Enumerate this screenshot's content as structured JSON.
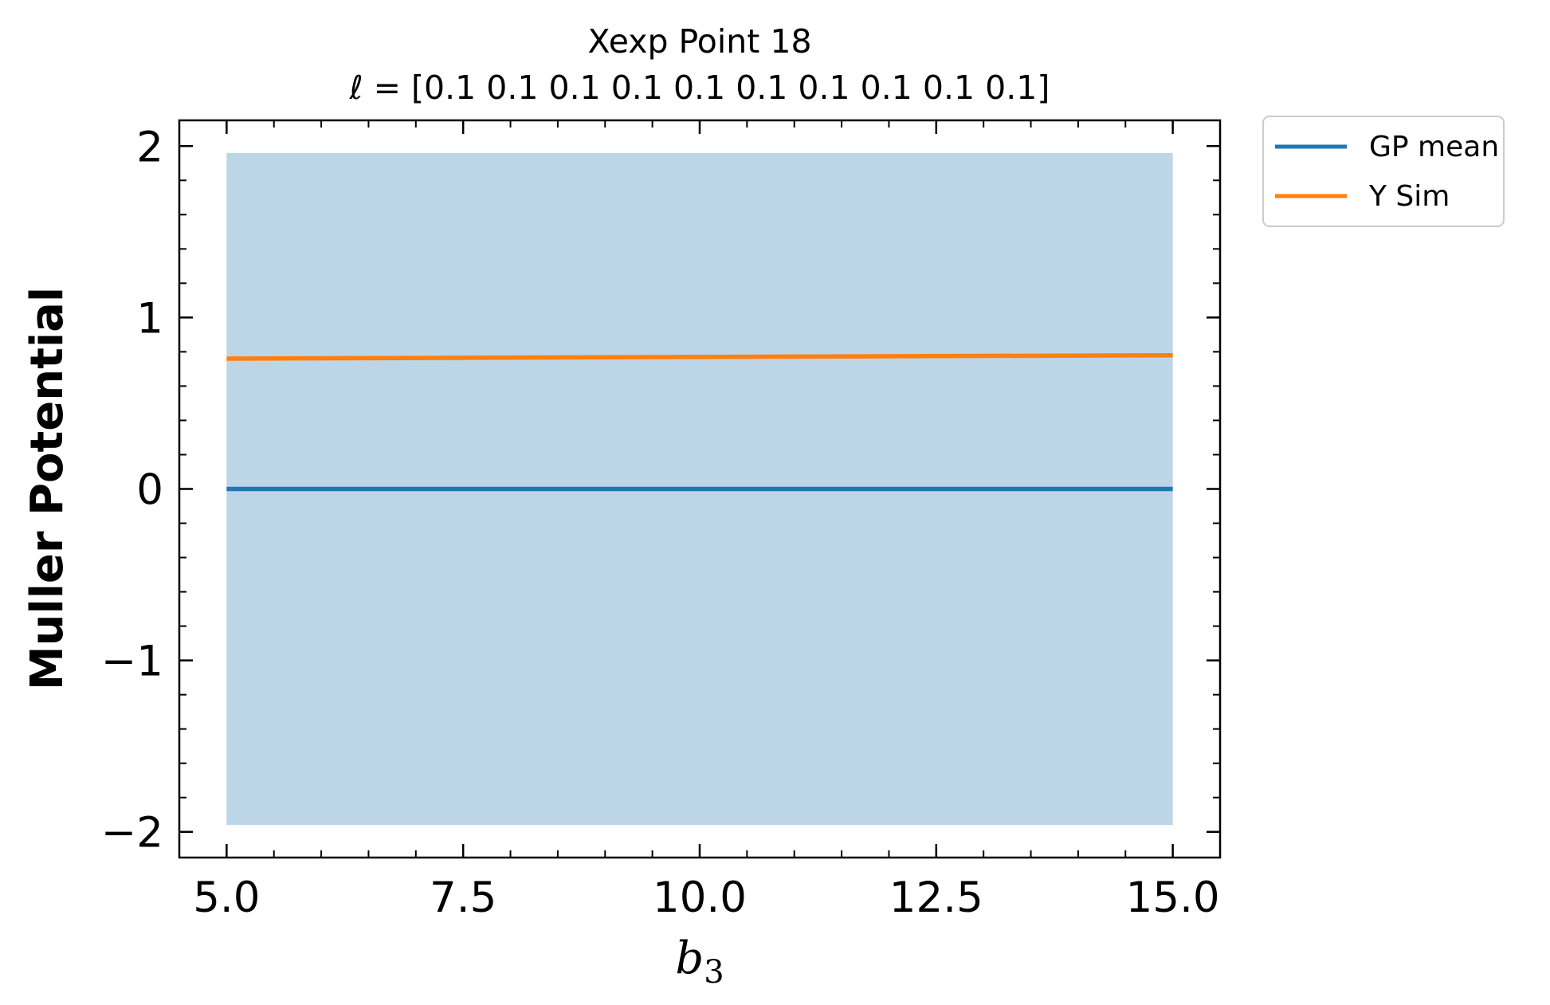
{
  "chart_data": {
    "type": "line",
    "title": "Xexp Point 18",
    "subtitle": "ℓ = [0.1 0.1 0.1 0.1 0.1 0.1 0.1 0.1 0.1 0.1]",
    "xlabel_base": "b",
    "xlabel_sub": "3",
    "ylabel": "Muller Potential",
    "xlim": [
      4.5,
      15.5
    ],
    "ylim": [
      -2.15,
      2.15
    ],
    "x_ticks": [
      5.0,
      7.5,
      10.0,
      12.5,
      15.0
    ],
    "x_tick_labels": [
      "5.0",
      "7.5",
      "10.0",
      "12.5",
      "15.0"
    ],
    "y_ticks": [
      -2,
      -1,
      0,
      1,
      2
    ],
    "y_tick_labels": [
      "−2",
      "−1",
      "0",
      "1",
      "2"
    ],
    "grid": false,
    "legend_placement": "outside-top-right",
    "band": {
      "x": [
        5.0,
        15.0
      ],
      "lower": [
        -1.96,
        -1.96
      ],
      "upper": [
        1.96,
        1.96
      ],
      "color": "#bcd6e8"
    },
    "series": [
      {
        "name": "GP mean",
        "color": "#1f77b4",
        "x": [
          5.0,
          15.0
        ],
        "y": [
          0.0,
          0.0
        ]
      },
      {
        "name": "Y Sim",
        "color": "#ff7f0e",
        "x": [
          5.0,
          15.0
        ],
        "y": [
          0.76,
          0.78
        ]
      }
    ]
  }
}
